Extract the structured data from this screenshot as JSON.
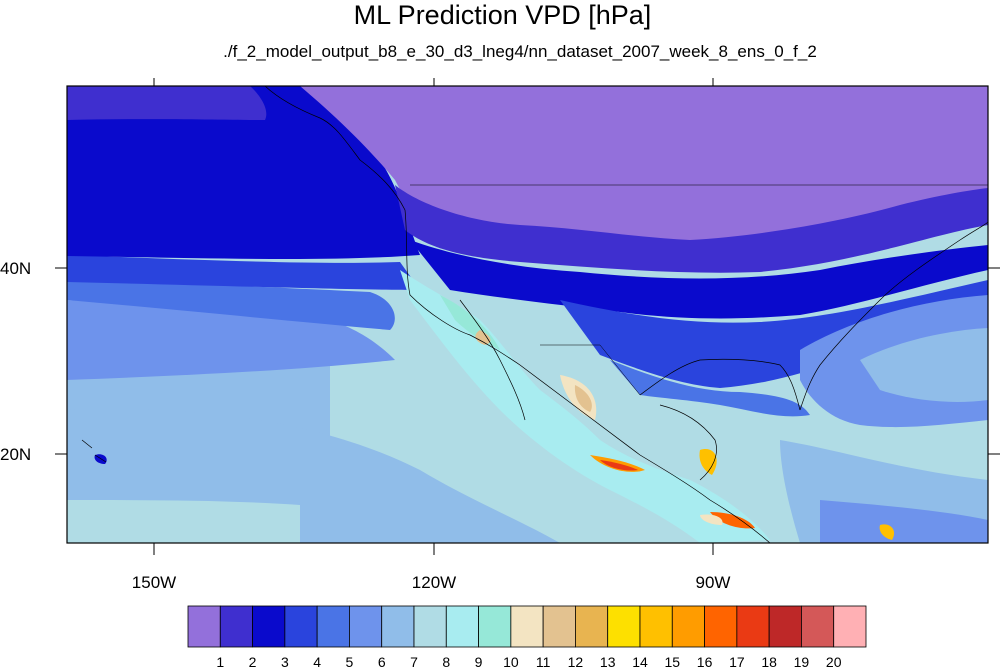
{
  "header": {
    "title": "ML Prediction VPD [hPa]",
    "subtitle": "./f_2_model_output_b8_e_30_d3_lneg4/nn_dataset_2007_week_8_ens_0_f_2"
  },
  "axes": {
    "lat_labels": [
      "40N",
      "20N"
    ],
    "lon_labels": [
      "150W",
      "120W",
      "90W"
    ]
  },
  "colorbar": {
    "colors": [
      "#9370db",
      "#3f2fcf",
      "#0a0acc",
      "#2a44dd",
      "#4a74e6",
      "#6e93ec",
      "#90bde9",
      "#b0dce5",
      "#a8ecf0",
      "#96e8d8",
      "#f3e4c2",
      "#e3c290",
      "#e8b450",
      "#fde000",
      "#ffc000",
      "#ff9c00",
      "#ff6400",
      "#ea3a14",
      "#be2828",
      "#d45858",
      "#ffb0b4"
    ],
    "labels": [
      "1",
      "2",
      "3",
      "4",
      "5",
      "6",
      "7",
      "8",
      "9",
      "10",
      "11",
      "12",
      "13",
      "14",
      "15",
      "16",
      "17",
      "18",
      "19",
      "20"
    ]
  }
}
